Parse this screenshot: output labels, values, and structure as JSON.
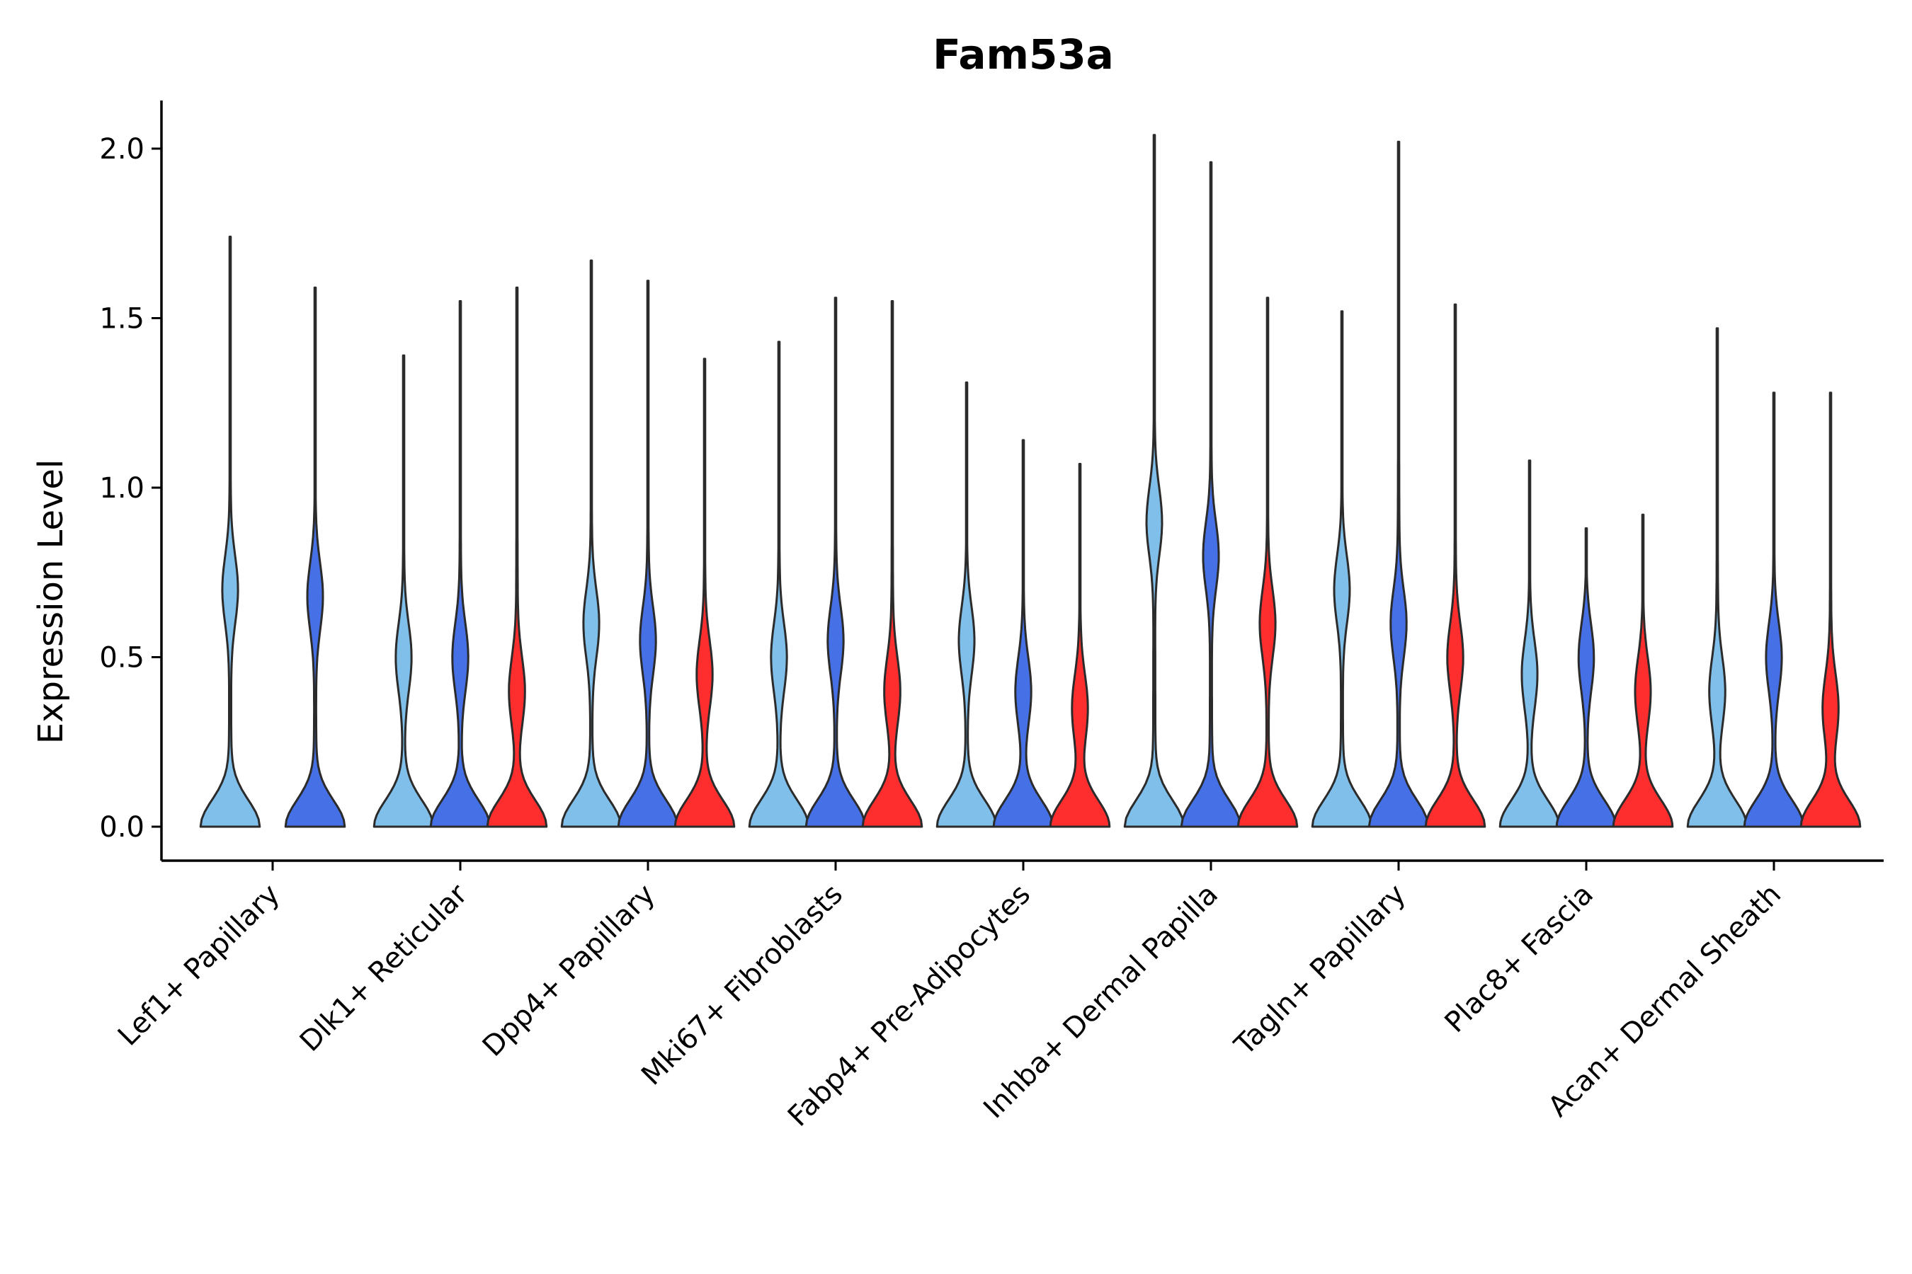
{
  "chart_data": {
    "type": "violin",
    "title": "Fam53a",
    "xlabel": "",
    "ylabel": "Expression Level",
    "ylim": [
      -0.1,
      2.15
    ],
    "yticks": [
      0.0,
      0.5,
      1.0,
      1.5,
      2.0
    ],
    "ytick_labels": [
      "0.0",
      "0.5",
      "1.0",
      "1.5",
      "2.0"
    ],
    "grid": false,
    "legend": "none",
    "series_colors": [
      "#7fbfea",
      "#4570e6",
      "#ff2e2e"
    ],
    "categories": [
      "Lef1+ Papillary",
      "Dlk1+ Reticular",
      "Dpp4+ Papillary",
      "Mki67+ Fibroblasts",
      "Fabp4+ Pre-Adipocytes",
      "Inhba+ Dermal Papilla",
      "Tagln+ Papillary",
      "Plac8+ Fascia",
      "Acan+ Dermal Sheath"
    ],
    "groups": [
      {
        "category": "Lef1+ Papillary",
        "violins": [
          {
            "series": 0,
            "max": 1.74,
            "mode": 0.7
          },
          {
            "series": 1,
            "max": 1.59,
            "mode": 0.68
          }
        ]
      },
      {
        "category": "Dlk1+ Reticular",
        "violins": [
          {
            "series": 0,
            "max": 1.39,
            "mode": 0.5
          },
          {
            "series": 1,
            "max": 1.55,
            "mode": 0.5
          },
          {
            "series": 2,
            "max": 1.59,
            "mode": 0.4
          }
        ]
      },
      {
        "category": "Dpp4+ Papillary",
        "violins": [
          {
            "series": 0,
            "max": 1.67,
            "mode": 0.6
          },
          {
            "series": 1,
            "max": 1.61,
            "mode": 0.55
          },
          {
            "series": 2,
            "max": 1.38,
            "mode": 0.45
          }
        ]
      },
      {
        "category": "Mki67+ Fibroblasts",
        "violins": [
          {
            "series": 0,
            "max": 1.43,
            "mode": 0.5
          },
          {
            "series": 1,
            "max": 1.56,
            "mode": 0.55
          },
          {
            "series": 2,
            "max": 1.55,
            "mode": 0.4
          }
        ]
      },
      {
        "category": "Fabp4+ Pre-Adipocytes",
        "violins": [
          {
            "series": 0,
            "max": 1.31,
            "mode": 0.55
          },
          {
            "series": 1,
            "max": 1.14,
            "mode": 0.4
          },
          {
            "series": 2,
            "max": 1.07,
            "mode": 0.35
          }
        ]
      },
      {
        "category": "Inhba+ Dermal Papilla",
        "violins": [
          {
            "series": 0,
            "max": 2.04,
            "mode": 0.9
          },
          {
            "series": 1,
            "max": 1.96,
            "mode": 0.8
          },
          {
            "series": 2,
            "max": 1.56,
            "mode": 0.6
          }
        ]
      },
      {
        "category": "Tagln+ Papillary",
        "violins": [
          {
            "series": 0,
            "max": 1.52,
            "mode": 0.7
          },
          {
            "series": 1,
            "max": 2.02,
            "mode": 0.6
          },
          {
            "series": 2,
            "max": 1.54,
            "mode": 0.5
          }
        ]
      },
      {
        "category": "Plac8+ Fascia",
        "violins": [
          {
            "series": 0,
            "max": 1.08,
            "mode": 0.45
          },
          {
            "series": 1,
            "max": 0.88,
            "mode": 0.5
          },
          {
            "series": 2,
            "max": 0.92,
            "mode": 0.4
          }
        ]
      },
      {
        "category": "Acan+ Dermal Sheath",
        "violins": [
          {
            "series": 0,
            "max": 1.47,
            "mode": 0.4
          },
          {
            "series": 1,
            "max": 1.28,
            "mode": 0.5
          },
          {
            "series": 2,
            "max": 1.28,
            "mode": 0.35
          }
        ]
      }
    ]
  }
}
